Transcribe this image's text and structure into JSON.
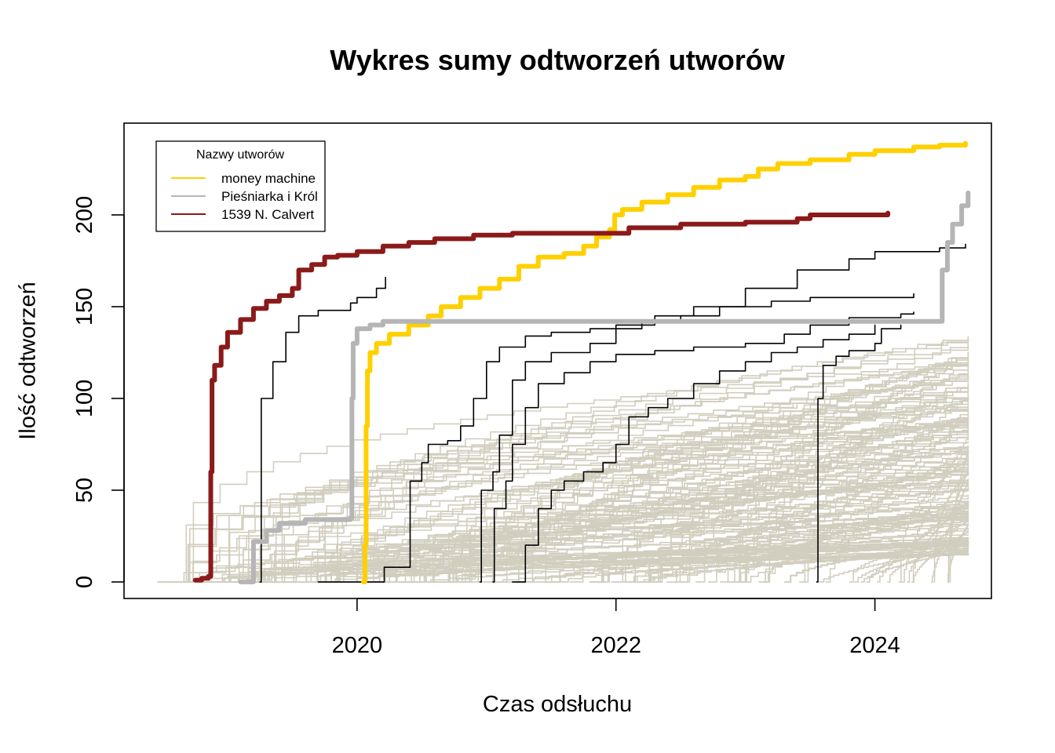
{
  "chart_data": {
    "type": "line",
    "title": "Wykres sumy odtworzeń utworów",
    "xlabel": "Czas odsłuchu",
    "ylabel": "Ilość odtworzeń",
    "xlim": [
      2018.2,
      2024.9
    ],
    "ylim": [
      -9,
      250
    ],
    "x_ticks": [
      2020,
      2022,
      2024
    ],
    "x_tick_labels": [
      "2020",
      "2022",
      "2024"
    ],
    "y_ticks": [
      0,
      50,
      100,
      150,
      200
    ],
    "y_tick_labels": [
      "0",
      "50",
      "100",
      "150",
      "200"
    ],
    "grid": false,
    "legend": {
      "title": "Nazwy utworów",
      "position": "top-left",
      "entries": [
        "money machine",
        "Pieśniarka i Król",
        "1539 N. Calvert"
      ]
    },
    "series": [
      {
        "name": "money machine",
        "color": "#FFD000",
        "highlight": true,
        "points": [
          [
            2020.05,
            0
          ],
          [
            2020.06,
            20
          ],
          [
            2020.07,
            85
          ],
          [
            2020.08,
            115
          ],
          [
            2020.1,
            125
          ],
          [
            2020.15,
            130
          ],
          [
            2020.25,
            135
          ],
          [
            2020.4,
            140
          ],
          [
            2020.55,
            145
          ],
          [
            2020.65,
            150
          ],
          [
            2020.8,
            155
          ],
          [
            2020.95,
            160
          ],
          [
            2021.1,
            165
          ],
          [
            2021.25,
            172
          ],
          [
            2021.4,
            177
          ],
          [
            2021.6,
            179
          ],
          [
            2021.75,
            183
          ],
          [
            2021.85,
            188
          ],
          [
            2021.95,
            192
          ],
          [
            2021.99,
            200
          ],
          [
            2022.05,
            203
          ],
          [
            2022.2,
            207
          ],
          [
            2022.4,
            211
          ],
          [
            2022.6,
            215
          ],
          [
            2022.8,
            219
          ],
          [
            2023.0,
            221
          ],
          [
            2023.1,
            225
          ],
          [
            2023.25,
            228
          ],
          [
            2023.5,
            230
          ],
          [
            2023.8,
            233
          ],
          [
            2024.0,
            235
          ],
          [
            2024.3,
            237
          ],
          [
            2024.5,
            238
          ],
          [
            2024.7,
            239
          ]
        ]
      },
      {
        "name": "Pieśniarka i Król",
        "color": "#B5B5B5",
        "highlight": true,
        "points": [
          [
            2019.1,
            0
          ],
          [
            2019.15,
            0
          ],
          [
            2019.2,
            22
          ],
          [
            2019.3,
            28
          ],
          [
            2019.4,
            32
          ],
          [
            2019.6,
            34
          ],
          [
            2019.95,
            35
          ],
          [
            2019.96,
            100
          ],
          [
            2019.97,
            130
          ],
          [
            2020.0,
            138
          ],
          [
            2020.1,
            140
          ],
          [
            2020.2,
            142
          ],
          [
            2024.5,
            142
          ],
          [
            2024.52,
            170
          ],
          [
            2024.56,
            185
          ],
          [
            2024.6,
            195
          ],
          [
            2024.67,
            205
          ],
          [
            2024.72,
            212
          ]
        ]
      },
      {
        "name": "1539 N. Calvert",
        "color": "#8B1A1A",
        "highlight": true,
        "points": [
          [
            2018.75,
            1
          ],
          [
            2018.8,
            2
          ],
          [
            2018.85,
            3
          ],
          [
            2018.87,
            60
          ],
          [
            2018.88,
            110
          ],
          [
            2018.9,
            118
          ],
          [
            2018.95,
            128
          ],
          [
            2019.0,
            136
          ],
          [
            2019.1,
            143
          ],
          [
            2019.2,
            149
          ],
          [
            2019.3,
            153
          ],
          [
            2019.4,
            156
          ],
          [
            2019.5,
            160
          ],
          [
            2019.55,
            170
          ],
          [
            2019.65,
            173
          ],
          [
            2019.75,
            177
          ],
          [
            2019.85,
            178
          ],
          [
            2020.0,
            180
          ],
          [
            2020.2,
            183
          ],
          [
            2020.4,
            185
          ],
          [
            2020.6,
            187
          ],
          [
            2020.9,
            189
          ],
          [
            2021.2,
            190
          ],
          [
            2021.9,
            190
          ],
          [
            2022.1,
            193
          ],
          [
            2022.5,
            195
          ],
          [
            2023.0,
            196
          ],
          [
            2023.4,
            198
          ],
          [
            2023.5,
            200
          ],
          [
            2024.1,
            201
          ]
        ]
      },
      {
        "name": "",
        "color": "#000000",
        "highlight": false,
        "width": 1.6,
        "points": [
          [
            2019.25,
            0
          ],
          [
            2019.26,
            100
          ],
          [
            2019.35,
            120
          ],
          [
            2019.45,
            136
          ],
          [
            2019.55,
            145
          ],
          [
            2019.7,
            148
          ],
          [
            2019.95,
            152
          ],
          [
            2020.0,
            155
          ],
          [
            2020.15,
            160
          ],
          [
            2020.22,
            166
          ]
        ]
      },
      {
        "name": "",
        "color": "#000000",
        "highlight": false,
        "width": 1.6,
        "points": [
          [
            2019.7,
            0
          ],
          [
            2020.2,
            0
          ],
          [
            2020.21,
            8
          ],
          [
            2020.4,
            8
          ],
          [
            2020.41,
            55
          ],
          [
            2020.5,
            65
          ],
          [
            2020.55,
            75
          ],
          [
            2020.7,
            77
          ],
          [
            2020.8,
            85
          ],
          [
            2020.9,
            100
          ],
          [
            2021.0,
            120
          ],
          [
            2021.1,
            128
          ],
          [
            2021.3,
            134
          ],
          [
            2021.5,
            136
          ],
          [
            2021.8,
            138
          ],
          [
            2022.2,
            142
          ],
          [
            2022.5,
            145
          ],
          [
            2022.8,
            150
          ],
          [
            2023.2,
            153
          ],
          [
            2023.5,
            155
          ],
          [
            2023.8,
            155
          ],
          [
            2024.0,
            155
          ],
          [
            2024.3,
            157
          ]
        ]
      },
      {
        "name": "",
        "color": "#000000",
        "highlight": false,
        "width": 1.6,
        "points": [
          [
            2020.95,
            0
          ],
          [
            2020.96,
            50
          ],
          [
            2021.05,
            60
          ],
          [
            2021.1,
            80
          ],
          [
            2021.2,
            110
          ],
          [
            2021.3,
            120
          ],
          [
            2021.5,
            125
          ],
          [
            2021.8,
            130
          ],
          [
            2022.0,
            140
          ],
          [
            2022.3,
            145
          ],
          [
            2022.6,
            150
          ],
          [
            2023.0,
            160
          ],
          [
            2023.4,
            170
          ],
          [
            2023.8,
            176
          ],
          [
            2024.0,
            180
          ],
          [
            2024.5,
            182
          ],
          [
            2024.7,
            184
          ]
        ]
      },
      {
        "name": "",
        "color": "#000000",
        "highlight": false,
        "width": 1.6,
        "points": [
          [
            2021.05,
            0
          ],
          [
            2021.06,
            40
          ],
          [
            2021.15,
            55
          ],
          [
            2021.2,
            75
          ],
          [
            2021.3,
            95
          ],
          [
            2021.4,
            108
          ],
          [
            2021.6,
            114
          ],
          [
            2021.8,
            120
          ],
          [
            2022.0,
            124
          ],
          [
            2022.3,
            126
          ],
          [
            2022.6,
            128
          ],
          [
            2023.0,
            130
          ],
          [
            2023.3,
            135
          ],
          [
            2023.5,
            140
          ],
          [
            2023.8,
            144
          ],
          [
            2024.2,
            146
          ],
          [
            2024.3,
            147
          ]
        ]
      },
      {
        "name": "",
        "color": "#000000",
        "highlight": false,
        "width": 1.6,
        "points": [
          [
            2021.2,
            0
          ],
          [
            2021.3,
            20
          ],
          [
            2021.4,
            40
          ],
          [
            2021.5,
            50
          ],
          [
            2021.6,
            55
          ],
          [
            2021.75,
            60
          ],
          [
            2021.9,
            65
          ],
          [
            2022.0,
            75
          ],
          [
            2022.1,
            90
          ],
          [
            2022.25,
            95
          ],
          [
            2022.4,
            100
          ],
          [
            2022.6,
            108
          ],
          [
            2022.8,
            115
          ],
          [
            2023.0,
            120
          ],
          [
            2023.2,
            125
          ],
          [
            2023.4,
            128
          ],
          [
            2023.6,
            132
          ],
          [
            2023.8,
            135
          ],
          [
            2024.0,
            140
          ]
        ]
      },
      {
        "name": "",
        "color": "#000000",
        "highlight": false,
        "width": 1.6,
        "points": [
          [
            2023.55,
            0
          ],
          [
            2023.56,
            100
          ],
          [
            2023.6,
            118
          ],
          [
            2023.7,
            123
          ],
          [
            2023.8,
            126
          ],
          [
            2024.0,
            130
          ],
          [
            2024.05,
            138
          ],
          [
            2024.2,
            140
          ]
        ]
      }
    ],
    "background_series": {
      "count": 170,
      "color": "#D2CEBF",
      "x_start_range": [
        2018.45,
        2024.6
      ],
      "x_end": 2024.72,
      "y_max_range": [
        15,
        135
      ]
    }
  }
}
